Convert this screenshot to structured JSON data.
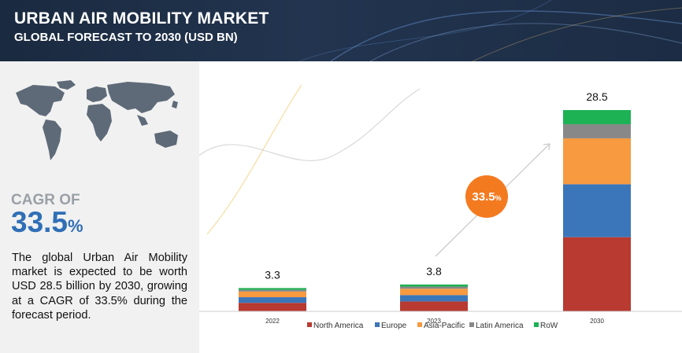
{
  "header": {
    "title": "URBAN AIR MOBILITY MARKET",
    "subtitle": "GLOBAL FORECAST TO 2030 (USD BN)"
  },
  "left_panel": {
    "cagr_label": "CAGR OF",
    "cagr_value": "33.5",
    "cagr_unit": "%",
    "description": "The global Urban Air Mobility market is expected to be worth USD 28.5 billion by 2030, growing at a CAGR of 33.5% during the forecast period."
  },
  "chart_data": {
    "type": "bar",
    "stacked": true,
    "categories": [
      "2022",
      "2023",
      "2030"
    ],
    "totals": [
      "3.3",
      "3.8",
      "28.5"
    ],
    "series": [
      {
        "name": "North America",
        "color": "#b83a30",
        "values": [
          1.2,
          1.4,
          10.5
        ]
      },
      {
        "name": "Europe",
        "color": "#3b76ba",
        "values": [
          0.8,
          0.9,
          7.5
        ]
      },
      {
        "name": "Asia-Pacific",
        "color": "#f79a40",
        "values": [
          0.8,
          0.9,
          6.5
        ]
      },
      {
        "name": "Latin America",
        "color": "#888888",
        "values": [
          0.25,
          0.3,
          2.0
        ]
      },
      {
        "name": "RoW",
        "color": "#1db254",
        "values": [
          0.25,
          0.3,
          2.0
        ]
      }
    ],
    "annotation": {
      "value": "33.5",
      "unit": "%",
      "color": "#f47a20"
    },
    "legend_position": "bottom"
  }
}
